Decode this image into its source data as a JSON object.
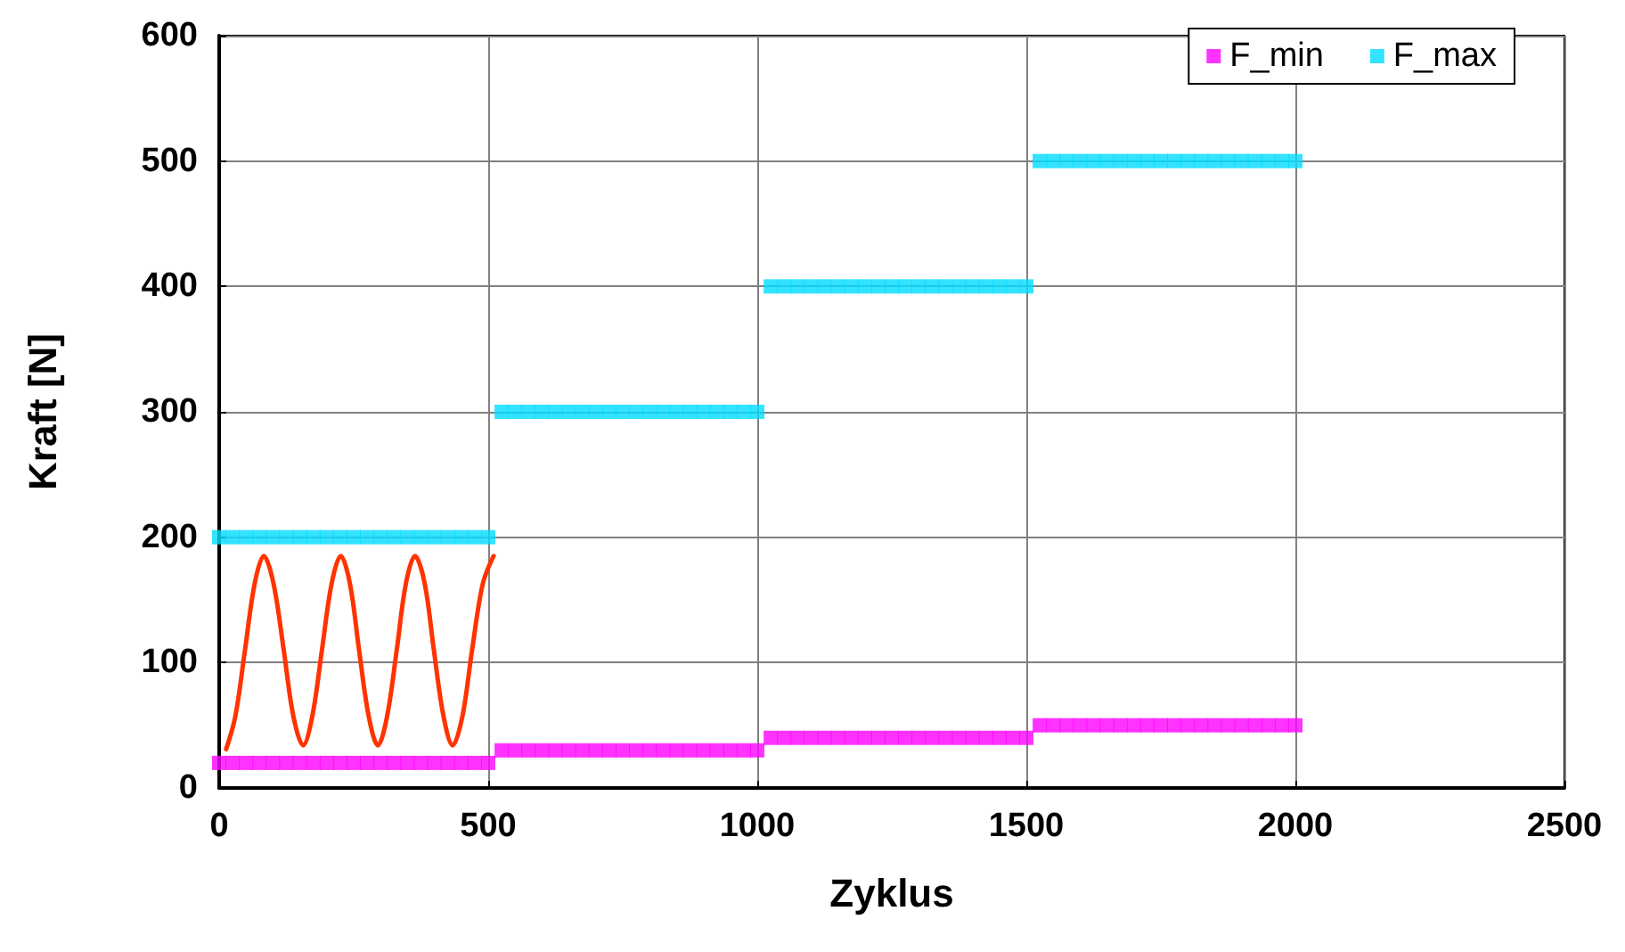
{
  "chart_data": {
    "type": "scatter",
    "xlabel": "Zyklus",
    "ylabel": "Kraft [N]",
    "xlim": [
      0,
      2500
    ],
    "xticks": [
      0,
      500,
      1000,
      1500,
      2000,
      2500
    ],
    "ylim": [
      0,
      600
    ],
    "yticks": [
      0,
      100,
      200,
      300,
      400,
      500,
      600
    ],
    "grid": true,
    "legend": "top right",
    "marker": "square",
    "x": [
      0,
      25,
      50,
      75,
      100,
      125,
      150,
      175,
      200,
      225,
      250,
      275,
      300,
      325,
      350,
      375,
      400,
      425,
      450,
      475,
      500,
      525,
      550,
      575,
      600,
      625,
      650,
      675,
      700,
      725,
      750,
      775,
      800,
      825,
      850,
      875,
      900,
      925,
      950,
      975,
      1000,
      1025,
      1050,
      1075,
      1100,
      1125,
      1150,
      1175,
      1200,
      1225,
      1250,
      1275,
      1300,
      1325,
      1350,
      1375,
      1400,
      1425,
      1450,
      1475,
      1500,
      1525,
      1550,
      1575,
      1600,
      1625,
      1650,
      1675,
      1700,
      1725,
      1750,
      1775,
      1800,
      1825,
      1850,
      1875,
      1900,
      1925,
      1950,
      1975,
      2000
    ],
    "series": [
      {
        "name": "F_min",
        "color": "#ff00ff",
        "values": [
          20,
          20,
          20,
          20,
          20,
          20,
          20,
          20,
          20,
          20,
          20,
          20,
          20,
          20,
          20,
          20,
          20,
          20,
          20,
          20,
          20,
          30,
          30,
          30,
          30,
          30,
          30,
          30,
          30,
          30,
          30,
          30,
          30,
          30,
          30,
          30,
          30,
          30,
          30,
          30,
          30,
          40,
          40,
          40,
          40,
          40,
          40,
          40,
          40,
          40,
          40,
          40,
          40,
          40,
          40,
          40,
          40,
          40,
          40,
          40,
          40,
          50,
          50,
          50,
          50,
          50,
          50,
          50,
          50,
          50,
          50,
          50,
          50,
          50,
          50,
          50,
          50,
          50,
          50,
          50,
          50
        ]
      },
      {
        "name": "F_max",
        "color": "#00dcff",
        "values": [
          200,
          200,
          200,
          200,
          200,
          200,
          200,
          200,
          200,
          200,
          200,
          200,
          200,
          200,
          200,
          200,
          200,
          200,
          200,
          200,
          200,
          300,
          300,
          300,
          300,
          300,
          300,
          300,
          300,
          300,
          300,
          300,
          300,
          300,
          300,
          300,
          300,
          300,
          300,
          300,
          300,
          400,
          400,
          400,
          400,
          400,
          400,
          400,
          400,
          400,
          400,
          400,
          400,
          400,
          400,
          400,
          400,
          400,
          400,
          400,
          400,
          500,
          500,
          500,
          500,
          500,
          500,
          500,
          500,
          500,
          500,
          500,
          500,
          500,
          500,
          500,
          500,
          500,
          500,
          500,
          500
        ]
      },
      {
        "type": "line",
        "marker": "none",
        "color": "#ff3300",
        "x": [
          13,
          30,
          48,
          66,
          83,
          101,
          120,
          138,
          156,
          173,
          191,
          209,
          226,
          243,
          260,
          278,
          295,
          312,
          330,
          347,
          364,
          382,
          399,
          417,
          434,
          452,
          470,
          490,
          510
        ],
        "values": [
          31,
          57,
          110,
          163,
          185,
          163,
          110,
          57,
          34,
          57,
          110,
          163,
          185,
          163,
          110,
          57,
          34,
          57,
          110,
          163,
          185,
          163,
          110,
          57,
          34,
          57,
          110,
          163,
          185
        ]
      }
    ]
  }
}
